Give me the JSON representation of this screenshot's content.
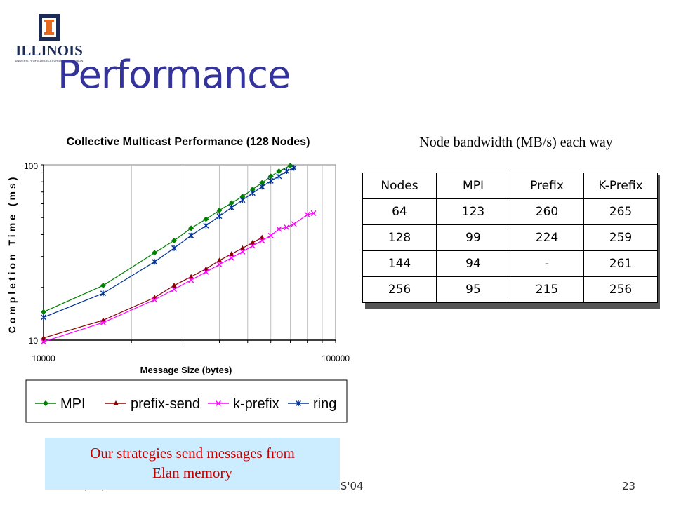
{
  "logo": {
    "text": "ILLINOIS",
    "subtext": "UNIVERSITY OF ILLINOIS AT URBANA-CHAMPAIGN"
  },
  "slide": {
    "title": "Performance"
  },
  "table": {
    "caption": "Node bandwidth (MB/s) each way",
    "headers": [
      "Nodes",
      "MPI",
      "Prefix",
      "K-Prefix"
    ],
    "rows": [
      [
        "64",
        "123",
        "260",
        "265"
      ],
      [
        "128",
        "99",
        "224",
        "259"
      ],
      [
        "144",
        "94",
        "-",
        "261"
      ],
      [
        "256",
        "95",
        "215",
        "256"
      ]
    ]
  },
  "note": {
    "line1": "Our strategies send messages from",
    "line2": "Elan memory"
  },
  "footer": {
    "date": "07/07/04",
    "conference": "ICPADS'04",
    "page": "23"
  },
  "chart_data": {
    "type": "line",
    "title": "Collective Multicast Performance (128 Nodes)",
    "xlabel": "Message Size (bytes)",
    "ylabel": "Completion Time (ms)",
    "x_scale": "log",
    "y_scale": "log",
    "xlim": [
      10000,
      100000
    ],
    "ylim": [
      10,
      100
    ],
    "x_ticks": [
      "10000",
      "100000"
    ],
    "y_ticks": [
      "10",
      "100"
    ],
    "legend_position": "bottom",
    "series": [
      {
        "name": "MPI",
        "color": "#008000",
        "marker": "diamond",
        "x": [
          10000,
          16000,
          24000,
          28000,
          32000,
          36000,
          40000,
          44000,
          48000,
          52000,
          56000,
          60000,
          64000,
          70000
        ],
        "y": [
          14.5,
          20.5,
          31.5,
          37,
          43.5,
          49,
          55,
          60.5,
          66,
          72.5,
          79,
          86,
          92,
          99
        ]
      },
      {
        "name": "prefix-send",
        "color": "#8b0000",
        "marker": "triangle",
        "x": [
          10000,
          16000,
          24000,
          28000,
          32000,
          36000,
          40000,
          44000,
          48000,
          52000,
          56000
        ],
        "y": [
          10.3,
          13,
          17.5,
          20.5,
          23,
          25.5,
          28.5,
          31,
          33.5,
          36,
          38.5
        ]
      },
      {
        "name": "k-prefix",
        "color": "#ff00ff",
        "marker": "x",
        "x": [
          10000,
          16000,
          24000,
          28000,
          32000,
          36000,
          40000,
          44000,
          48000,
          52000,
          56000,
          60000,
          64000,
          68000,
          72000,
          80000,
          84000
        ],
        "y": [
          9.8,
          12.6,
          17,
          19.5,
          22,
          24.5,
          27,
          29.5,
          32,
          34.5,
          37,
          39.5,
          43,
          44,
          46,
          52,
          53
        ]
      },
      {
        "name": "ring",
        "color": "#003399",
        "marker": "star",
        "x": [
          10000,
          16000,
          24000,
          28000,
          32000,
          36000,
          40000,
          44000,
          48000,
          52000,
          56000,
          60000,
          64000,
          68000,
          72000
        ],
        "y": [
          13.5,
          18.5,
          28,
          33.5,
          39.5,
          45,
          51,
          57,
          63,
          69,
          75,
          81,
          86,
          92,
          96
        ]
      }
    ]
  }
}
